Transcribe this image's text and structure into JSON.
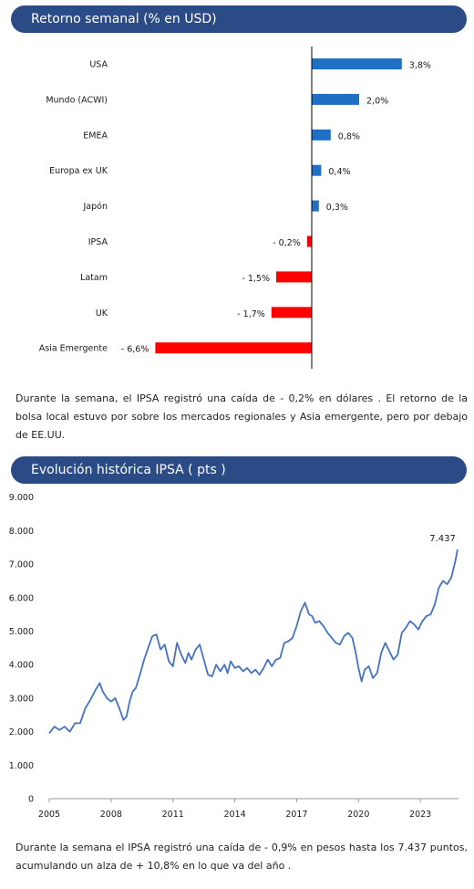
{
  "section1": {
    "title": "Retorno semanal (% en USD)"
  },
  "section2": {
    "title": "Evolución histórica IPSA ( pts )"
  },
  "text1": "Durante la semana, el IPSA registró una caída de - 0,2% en dólares . El retorno de la bolsa local estuvo por sobre los mercados regionales y Asia emergente, pero por debajo de EE.UU.",
  "text2": "Durante la semana el IPSA registró una caída de - 0,9% en pesos hasta los 7.437 puntos, acumulando un alza de + 10,8% en lo que va del año .",
  "colors": {
    "header": "#2b4b87",
    "positive": "#1f6fc5",
    "negative": "#ff0000",
    "line": "#4472c4"
  },
  "chart_data": [
    {
      "type": "bar",
      "orientation": "horizontal",
      "categories": [
        "USA",
        "Mundo (ACWI)",
        "EMEA",
        "Europa ex UK",
        "Japón",
        "IPSA",
        "Latam",
        "UK",
        "Asia Emergente"
      ],
      "values": [
        3.8,
        2.0,
        0.8,
        0.4,
        0.3,
        -0.2,
        -1.5,
        -1.7,
        -6.6
      ],
      "labels": [
        "3,8%",
        "2,0%",
        "0,8%",
        "0,4%",
        "0,3%",
        "- 0,2%",
        "- 1,5%",
        "- 1,7%",
        "- 6,6%"
      ],
      "title": "Retorno semanal (% en USD)",
      "xlim": [
        -6.6,
        3.8
      ],
      "colors": {
        "positive": "#1f6fc5",
        "negative": "#ff0000"
      }
    },
    {
      "type": "line",
      "title": "Evolución histórica IPSA ( pts )",
      "ylim": [
        0,
        9000
      ],
      "yticks": [
        0,
        1000,
        2000,
        3000,
        4000,
        5000,
        6000,
        7000,
        8000,
        9000
      ],
      "ytick_labels": [
        "0",
        "1.000",
        "2.000",
        "3.000",
        "4.000",
        "5.000",
        "6.000",
        "7.000",
        "8.000",
        "9.000"
      ],
      "xlim": [
        2005,
        2024.85
      ],
      "xticks": [
        2005,
        2008,
        2011,
        2014,
        2017,
        2020,
        2023
      ],
      "xtick_labels": [
        "2005",
        "2008",
        "2011",
        "2014",
        "2017",
        "2020",
        "2023"
      ],
      "last_value_label": "7.437",
      "series": [
        {
          "x": [
            2005.0,
            2005.25,
            2005.5,
            2005.75,
            2006.0,
            2006.25,
            2006.5,
            2006.75,
            2007.0,
            2007.25,
            2007.45,
            2007.6,
            2007.8,
            2008.0,
            2008.2,
            2008.4,
            2008.6,
            2008.75,
            2008.9,
            2009.05,
            2009.2,
            2009.4,
            2009.6,
            2009.8,
            2010.0,
            2010.2,
            2010.4,
            2010.6,
            2010.8,
            2011.0,
            2011.2,
            2011.4,
            2011.6,
            2011.75,
            2011.9,
            2012.1,
            2012.3,
            2012.5,
            2012.7,
            2012.9,
            2013.1,
            2013.3,
            2013.5,
            2013.65,
            2013.8,
            2014.0,
            2014.2,
            2014.4,
            2014.6,
            2014.8,
            2015.0,
            2015.2,
            2015.4,
            2015.6,
            2015.8,
            2016.0,
            2016.2,
            2016.4,
            2016.6,
            2016.8,
            2017.0,
            2017.2,
            2017.4,
            2017.6,
            2017.75,
            2017.9,
            2018.1,
            2018.3,
            2018.5,
            2018.7,
            2018.9,
            2019.1,
            2019.3,
            2019.5,
            2019.7,
            2019.85,
            2020.0,
            2020.15,
            2020.3,
            2020.5,
            2020.7,
            2020.9,
            2021.1,
            2021.3,
            2021.5,
            2021.7,
            2021.9,
            2022.1,
            2022.3,
            2022.5,
            2022.7,
            2022.9,
            2023.1,
            2023.3,
            2023.5,
            2023.7,
            2023.9,
            2024.1,
            2024.3,
            2024.5,
            2024.7,
            2024.8
          ],
          "y": [
            1950,
            2150,
            2050,
            2150,
            2000,
            2250,
            2250,
            2700,
            2950,
            3250,
            3450,
            3200,
            3000,
            2900,
            3000,
            2700,
            2350,
            2450,
            2900,
            3200,
            3300,
            3700,
            4150,
            4500,
            4850,
            4900,
            4450,
            4600,
            4100,
            3950,
            4650,
            4300,
            4050,
            4350,
            4150,
            4450,
            4600,
            4150,
            3700,
            3650,
            4000,
            3800,
            4000,
            3750,
            4100,
            3900,
            3950,
            3800,
            3900,
            3750,
            3850,
            3700,
            3900,
            4150,
            3950,
            4150,
            4200,
            4650,
            4700,
            4800,
            5150,
            5600,
            5850,
            5500,
            5450,
            5250,
            5300,
            5150,
            4950,
            4800,
            4650,
            4600,
            4850,
            4950,
            4800,
            4400,
            3900,
            3500,
            3850,
            3950,
            3600,
            3750,
            4350,
            4650,
            4400,
            4150,
            4300,
            4950,
            5100,
            5300,
            5200,
            5050,
            5300,
            5450,
            5500,
            5800,
            6300,
            6500,
            6400,
            6600,
            7100,
            7437
          ]
        }
      ]
    }
  ]
}
